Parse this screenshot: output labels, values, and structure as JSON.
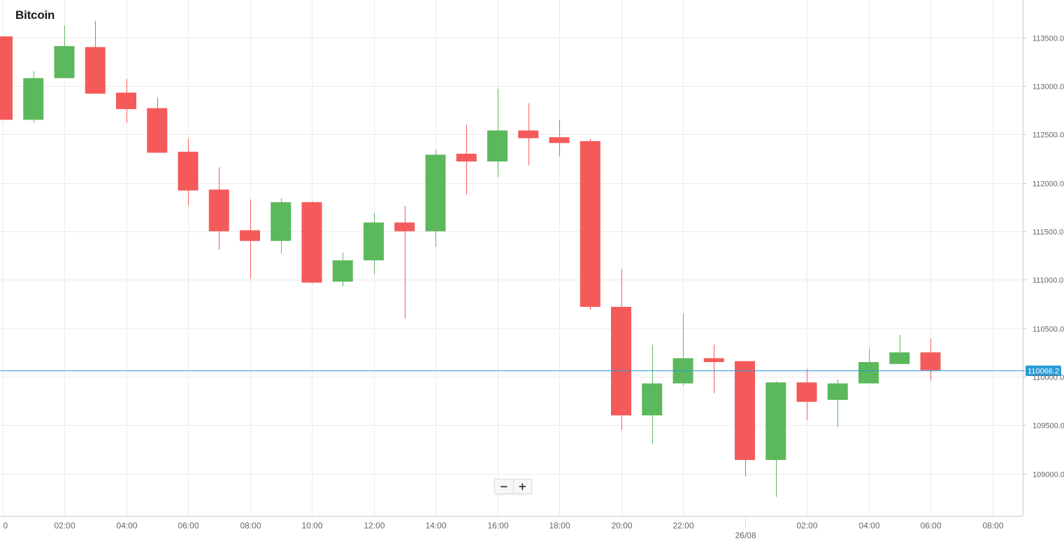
{
  "chart_data": {
    "type": "candlestick",
    "title": "Bitcoin",
    "xlabel": "",
    "ylabel": "",
    "interval_minutes": 60,
    "ylim": [
      108600,
      113900
    ],
    "y_ticks": [
      109000,
      109500,
      110000,
      110500,
      111000,
      111500,
      112000,
      112500,
      113000,
      113500
    ],
    "x_ticks": [
      {
        "label": "0",
        "t": 0
      },
      {
        "label": "02:00",
        "t": 2
      },
      {
        "label": "04:00",
        "t": 4
      },
      {
        "label": "06:00",
        "t": 6
      },
      {
        "label": "08:00",
        "t": 8
      },
      {
        "label": "10:00",
        "t": 10
      },
      {
        "label": "12:00",
        "t": 12
      },
      {
        "label": "14:00",
        "t": 14
      },
      {
        "label": "16:00",
        "t": 16
      },
      {
        "label": "18:00",
        "t": 18
      },
      {
        "label": "20:00",
        "t": 20
      },
      {
        "label": "22:00",
        "t": 22
      },
      {
        "label": "02:00",
        "t": 26
      },
      {
        "label": "04:00",
        "t": 28
      },
      {
        "label": "06:00",
        "t": 30
      },
      {
        "label": "08:00",
        "t": 32
      }
    ],
    "date_marker": {
      "label": "26/08",
      "t": 24
    },
    "current_price": {
      "value": 110066.2,
      "label": "110066.2"
    },
    "candles": [
      {
        "t": 0,
        "open": 113510,
        "high": 113510,
        "low": 112650,
        "close": 112650
      },
      {
        "t": 1,
        "open": 112650,
        "high": 113150,
        "low": 112620,
        "close": 113080
      },
      {
        "t": 2,
        "open": 113080,
        "high": 113620,
        "low": 113080,
        "close": 113410
      },
      {
        "t": 3,
        "open": 113400,
        "high": 113670,
        "low": 112920,
        "close": 112920
      },
      {
        "t": 4,
        "open": 112930,
        "high": 113070,
        "low": 112620,
        "close": 112760
      },
      {
        "t": 5,
        "open": 112770,
        "high": 112880,
        "low": 112310,
        "close": 112310
      },
      {
        "t": 6,
        "open": 112320,
        "high": 112460,
        "low": 111760,
        "close": 111920
      },
      {
        "t": 7,
        "open": 111930,
        "high": 112160,
        "low": 111310,
        "close": 111500
      },
      {
        "t": 8,
        "open": 111510,
        "high": 111830,
        "low": 111010,
        "close": 111400
      },
      {
        "t": 9,
        "open": 111400,
        "high": 111840,
        "low": 111270,
        "close": 111800
      },
      {
        "t": 10,
        "open": 111800,
        "high": 111810,
        "low": 110960,
        "close": 110970
      },
      {
        "t": 11,
        "open": 110980,
        "high": 111280,
        "low": 110930,
        "close": 111200
      },
      {
        "t": 12,
        "open": 111200,
        "high": 111690,
        "low": 111060,
        "close": 111590
      },
      {
        "t": 13,
        "open": 111590,
        "high": 111760,
        "low": 110600,
        "close": 111500
      },
      {
        "t": 14,
        "open": 111500,
        "high": 112340,
        "low": 111340,
        "close": 112290
      },
      {
        "t": 15,
        "open": 112300,
        "high": 112600,
        "low": 111880,
        "close": 112220
      },
      {
        "t": 16,
        "open": 112220,
        "high": 112970,
        "low": 112060,
        "close": 112540
      },
      {
        "t": 17,
        "open": 112540,
        "high": 112820,
        "low": 112180,
        "close": 112460
      },
      {
        "t": 18,
        "open": 112470,
        "high": 112650,
        "low": 112270,
        "close": 112410
      },
      {
        "t": 19,
        "open": 112430,
        "high": 112450,
        "low": 110690,
        "close": 110720
      },
      {
        "t": 20,
        "open": 110720,
        "high": 111110,
        "low": 109450,
        "close": 109600
      },
      {
        "t": 21,
        "open": 109600,
        "high": 110330,
        "low": 109310,
        "close": 109930
      },
      {
        "t": 22,
        "open": 109930,
        "high": 110650,
        "low": 109910,
        "close": 110190
      },
      {
        "t": 23,
        "open": 110190,
        "high": 110330,
        "low": 109830,
        "close": 110150
      },
      {
        "t": 24,
        "open": 110160,
        "high": 110160,
        "low": 108970,
        "close": 109140
      },
      {
        "t": 25,
        "open": 109140,
        "high": 109950,
        "low": 108760,
        "close": 109940
      },
      {
        "t": 26,
        "open": 109940,
        "high": 110080,
        "low": 109550,
        "close": 109740
      },
      {
        "t": 27,
        "open": 109760,
        "high": 109970,
        "low": 109480,
        "close": 109930
      },
      {
        "t": 28,
        "open": 109930,
        "high": 110290,
        "low": 109930,
        "close": 110150
      },
      {
        "t": 29,
        "open": 110130,
        "high": 110430,
        "low": 110130,
        "close": 110250
      },
      {
        "t": 30,
        "open": 110250,
        "high": 110390,
        "low": 109960,
        "close": 110066.2
      }
    ]
  },
  "colors": {
    "up": "#5cb85c",
    "down": "#f55a5a",
    "grid": "#ebebeb",
    "axis": "#c9c9c9",
    "tick_text": "#666666",
    "price_line": "#2a9bd8",
    "price_badge": "#2a9bd8",
    "title_text": "#1a1a1a"
  },
  "zoom": {
    "minus_label": "−",
    "plus_label": "+"
  }
}
